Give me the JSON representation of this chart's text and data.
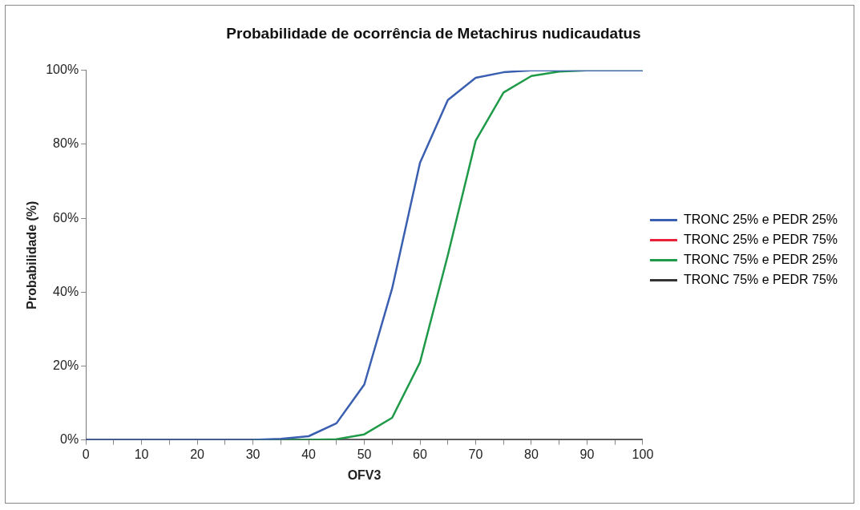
{
  "chart_data": {
    "type": "line",
    "title": "Probabilidade de ocorrência de Metachirus nudicaudatus",
    "xlabel": "OFV3",
    "ylabel": "Probabilidade (%)",
    "x": [
      0,
      5,
      10,
      15,
      20,
      25,
      30,
      35,
      40,
      45,
      50,
      55,
      60,
      65,
      70,
      75,
      80,
      85,
      90,
      95,
      100
    ],
    "series": [
      {
        "name": "TRONC 25% e PEDR 25%",
        "color": "#3a5fb0",
        "values": [
          0,
          0,
          0,
          0,
          0,
          0,
          0,
          0.3,
          1,
          4.5,
          15,
          41,
          75,
          92,
          98,
          99.5,
          100,
          100,
          100,
          100,
          100
        ]
      },
      {
        "name": "TRONC 25% e PEDR 75%",
        "color": "#e8203a",
        "values": [
          null,
          null,
          null,
          null,
          null,
          null,
          null,
          null,
          null,
          null,
          null,
          null,
          null,
          null,
          null,
          null,
          null,
          null,
          null,
          null,
          null
        ]
      },
      {
        "name": "TRONC 75% e PEDR 25%",
        "color": "#1f9a48",
        "values": [
          null,
          null,
          null,
          null,
          null,
          null,
          0,
          0,
          0,
          0.2,
          1.5,
          6,
          21,
          50,
          81,
          94,
          98.5,
          99.7,
          100,
          100,
          100
        ]
      },
      {
        "name": "TRONC 75% e PEDR 75%",
        "color": "#333333",
        "values": [
          0,
          0,
          0,
          0,
          0,
          0,
          0,
          0,
          0,
          0,
          0,
          0,
          0,
          0,
          0,
          0,
          0,
          0,
          0,
          0,
          0
        ]
      }
    ],
    "xlim": [
      0,
      100
    ],
    "xticks": [
      0,
      {
        "value": 5,
        "label": null
      },
      10,
      {
        "value": 15,
        "label": null
      },
      20,
      {
        "value": 25,
        "label": null
      },
      30,
      {
        "value": 35,
        "label": null
      },
      40,
      {
        "value": 45,
        "label": null
      },
      50,
      {
        "value": 55,
        "label": null
      },
      60,
      {
        "value": 65,
        "label": null
      },
      70,
      {
        "value": 75,
        "label": null
      },
      80,
      {
        "value": 85,
        "label": null
      },
      90,
      {
        "value": 95,
        "label": null
      },
      100
    ],
    "ylim": [
      0,
      100
    ],
    "yticks": [
      {
        "value": 0,
        "label": "0%"
      },
      {
        "value": 20,
        "label": "20%"
      },
      {
        "value": 40,
        "label": "40%"
      },
      {
        "value": 60,
        "label": "60%"
      },
      {
        "value": 80,
        "label": "80%"
      },
      {
        "value": 100,
        "label": "100%"
      }
    ],
    "grid": false,
    "legend": "right",
    "marker": "none",
    "line_style": "solid"
  }
}
